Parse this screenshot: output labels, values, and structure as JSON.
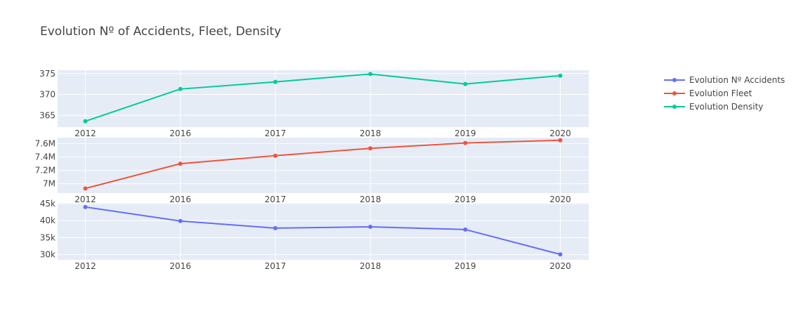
{
  "chart_data": {
    "type": "line",
    "title": "Evolution Nº of Accidents, Fleet, Density",
    "legend_position": "top-right",
    "grid": true,
    "categories": [
      "2012",
      "2016",
      "2017",
      "2018",
      "2019",
      "2020"
    ],
    "series": [
      {
        "name": "Evolution Nº Accidents",
        "color": "#636efa",
        "values": [
          44000,
          39900,
          37800,
          38200,
          37400,
          30100
        ],
        "ylim": [
          28500,
          45200
        ],
        "yticks": [
          30000,
          35000,
          40000,
          45000
        ],
        "yticklabels": [
          "30k",
          "35k",
          "40k",
          "45k"
        ]
      },
      {
        "name": "Evolution Fleet",
        "color": "#ef553b",
        "values": [
          6930000,
          7300000,
          7420000,
          7530000,
          7610000,
          7650000
        ],
        "ylim": [
          6860000,
          7690000
        ],
        "yticks": [
          7000000,
          7200000,
          7400000,
          7600000
        ],
        "yticklabels": [
          "7M",
          "7.2M",
          "7.4M",
          "7.6M"
        ]
      },
      {
        "name": "Evolution Density",
        "color": "#00cc96",
        "values": [
          363.6,
          371.3,
          373.0,
          374.9,
          372.5,
          374.5
        ],
        "ylim": [
          362.2,
          375.8
        ],
        "yticks": [
          365,
          370,
          375
        ],
        "yticklabels": [
          "365",
          "370",
          "375"
        ]
      }
    ]
  },
  "colors": {
    "plot_background": "#e5ecf6",
    "grid": "#ffffff",
    "text": "#444444"
  }
}
